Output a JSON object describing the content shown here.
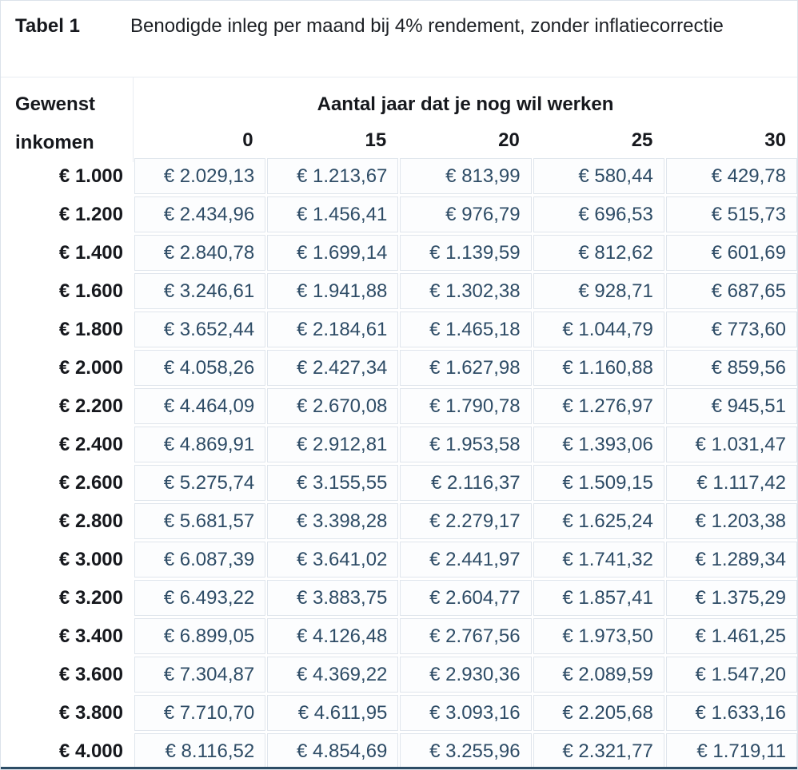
{
  "colors": {
    "value_text": "#2e4c66",
    "label_text": "#16181d",
    "cell_border": "#dfe5ec",
    "cell_background": "#fcfdfe",
    "outer_border": "#dbe2ea",
    "bottom_edge": "#2d4d66"
  },
  "chart_data": {
    "type": "table",
    "caption_label": "Tabel 1",
    "title": "Benodigde inleg per maand bij 4% rendement, zonder inflatiecorrectie",
    "row_group_label_line1": "Gewenst",
    "row_group_label_line2": "inkomen",
    "column_group_label": "Aantal jaar dat je nog wil werken",
    "columns": [
      "0",
      "15",
      "20",
      "25",
      "30"
    ],
    "rows": [
      {
        "label": "€ 1.000",
        "values": [
          "€ 2.029,13",
          "€ 1.213,67",
          "€ 813,99",
          "€ 580,44",
          "€ 429,78"
        ]
      },
      {
        "label": "€ 1.200",
        "values": [
          "€ 2.434,96",
          "€ 1.456,41",
          "€ 976,79",
          "€ 696,53",
          "€ 515,73"
        ]
      },
      {
        "label": "€ 1.400",
        "values": [
          "€ 2.840,78",
          "€ 1.699,14",
          "€ 1.139,59",
          "€ 812,62",
          "€ 601,69"
        ]
      },
      {
        "label": "€ 1.600",
        "values": [
          "€ 3.246,61",
          "€ 1.941,88",
          "€ 1.302,38",
          "€ 928,71",
          "€ 687,65"
        ]
      },
      {
        "label": "€ 1.800",
        "values": [
          "€ 3.652,44",
          "€ 2.184,61",
          "€ 1.465,18",
          "€ 1.044,79",
          "€ 773,60"
        ]
      },
      {
        "label": "€ 2.000",
        "values": [
          "€ 4.058,26",
          "€ 2.427,34",
          "€ 1.627,98",
          "€ 1.160,88",
          "€ 859,56"
        ]
      },
      {
        "label": "€ 2.200",
        "values": [
          "€ 4.464,09",
          "€ 2.670,08",
          "€ 1.790,78",
          "€ 1.276,97",
          "€ 945,51"
        ]
      },
      {
        "label": "€ 2.400",
        "values": [
          "€ 4.869,91",
          "€ 2.912,81",
          "€ 1.953,58",
          "€ 1.393,06",
          "€ 1.031,47"
        ]
      },
      {
        "label": "€ 2.600",
        "values": [
          "€ 5.275,74",
          "€ 3.155,55",
          "€ 2.116,37",
          "€ 1.509,15",
          "€ 1.117,42"
        ]
      },
      {
        "label": "€ 2.800",
        "values": [
          "€ 5.681,57",
          "€ 3.398,28",
          "€ 2.279,17",
          "€ 1.625,24",
          "€ 1.203,38"
        ]
      },
      {
        "label": "€ 3.000",
        "values": [
          "€ 6.087,39",
          "€ 3.641,02",
          "€ 2.441,97",
          "€ 1.741,32",
          "€ 1.289,34"
        ]
      },
      {
        "label": "€ 3.200",
        "values": [
          "€ 6.493,22",
          "€ 3.883,75",
          "€ 2.604,77",
          "€ 1.857,41",
          "€ 1.375,29"
        ]
      },
      {
        "label": "€ 3.400",
        "values": [
          "€ 6.899,05",
          "€ 4.126,48",
          "€ 2.767,56",
          "€ 1.973,50",
          "€ 1.461,25"
        ]
      },
      {
        "label": "€ 3.600",
        "values": [
          "€ 7.304,87",
          "€ 4.369,22",
          "€ 2.930,36",
          "€ 2.089,59",
          "€ 1.547,20"
        ]
      },
      {
        "label": "€ 3.800",
        "values": [
          "€ 7.710,70",
          "€ 4.611,95",
          "€ 3.093,16",
          "€ 2.205,68",
          "€ 1.633,16"
        ]
      },
      {
        "label": "€ 4.000",
        "values": [
          "€ 8.116,52",
          "€ 4.854,69",
          "€ 3.255,96",
          "€ 2.321,77",
          "€ 1.719,11"
        ]
      }
    ]
  }
}
